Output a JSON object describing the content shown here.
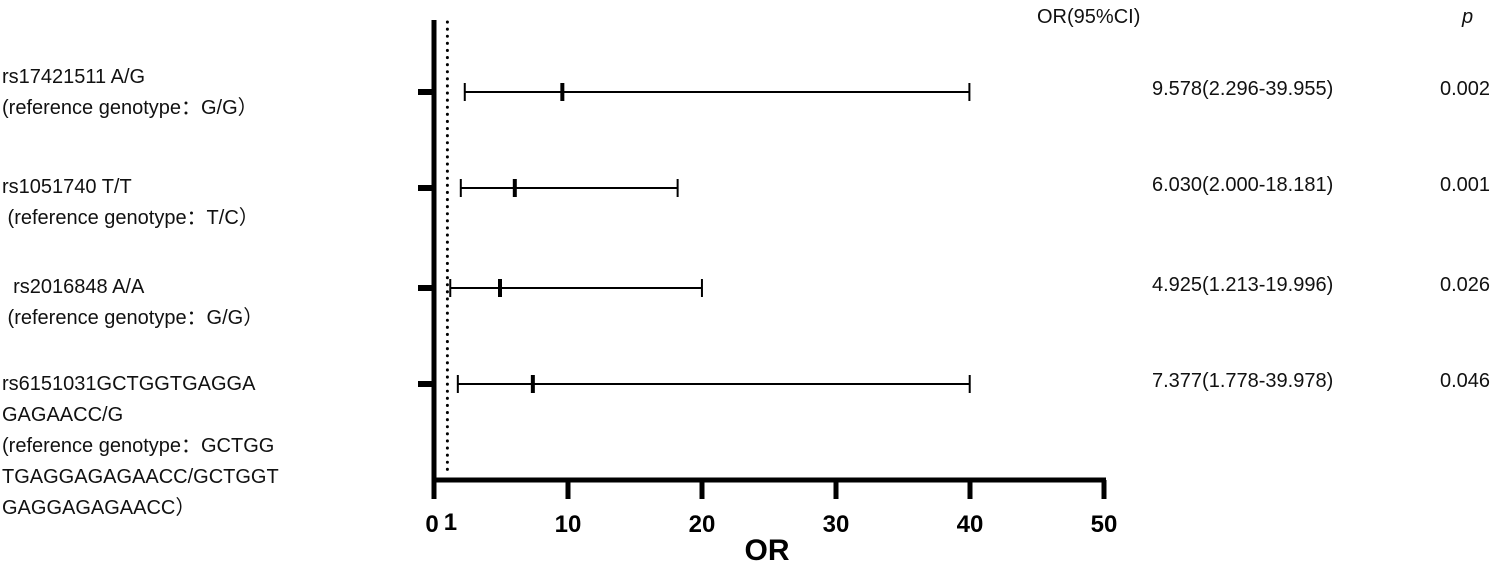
{
  "chart_data": {
    "type": "forest",
    "xlabel": "OR",
    "xlim": [
      0,
      50
    ],
    "xticks": [
      0,
      10,
      20,
      30,
      40,
      50
    ],
    "extra_tick_label": "1",
    "reference_line": 1,
    "grid": false,
    "rows": [
      {
        "label_lines": [
          "rs17421511 A/G",
          "(reference genotype：G/G）"
        ],
        "or": 9.578,
        "lo": 2.296,
        "hi": 39.955,
        "ci_text": "9.578(2.296-39.955)",
        "p": "0.002"
      },
      {
        "label_lines": [
          "rs1051740 T/T",
          " (reference genotype：T/C）"
        ],
        "or": 6.03,
        "lo": 2.0,
        "hi": 18.181,
        "ci_text": "6.030(2.000-18.181)",
        "p": "0.001"
      },
      {
        "label_lines": [
          "  rs2016848 A/A",
          " (reference genotype：G/G）"
        ],
        "or": 4.925,
        "lo": 1.213,
        "hi": 19.996,
        "ci_text": "4.925(1.213-19.996)",
        "p": "0.026"
      },
      {
        "label_lines": [
          "rs6151031GCTGGTGAGGA",
          "GAGAACC/G",
          "(reference genotype：GCTGG",
          "TGAGGAGAGAACC/GCTGGT",
          "GAGGAGAGAACC）"
        ],
        "or": 7.377,
        "lo": 1.778,
        "hi": 39.978,
        "ci_text": "7.377(1.778-39.978)",
        "p": "0.046"
      }
    ],
    "columns": {
      "ci_header": "OR(95%CI)",
      "p_header": "p"
    }
  }
}
